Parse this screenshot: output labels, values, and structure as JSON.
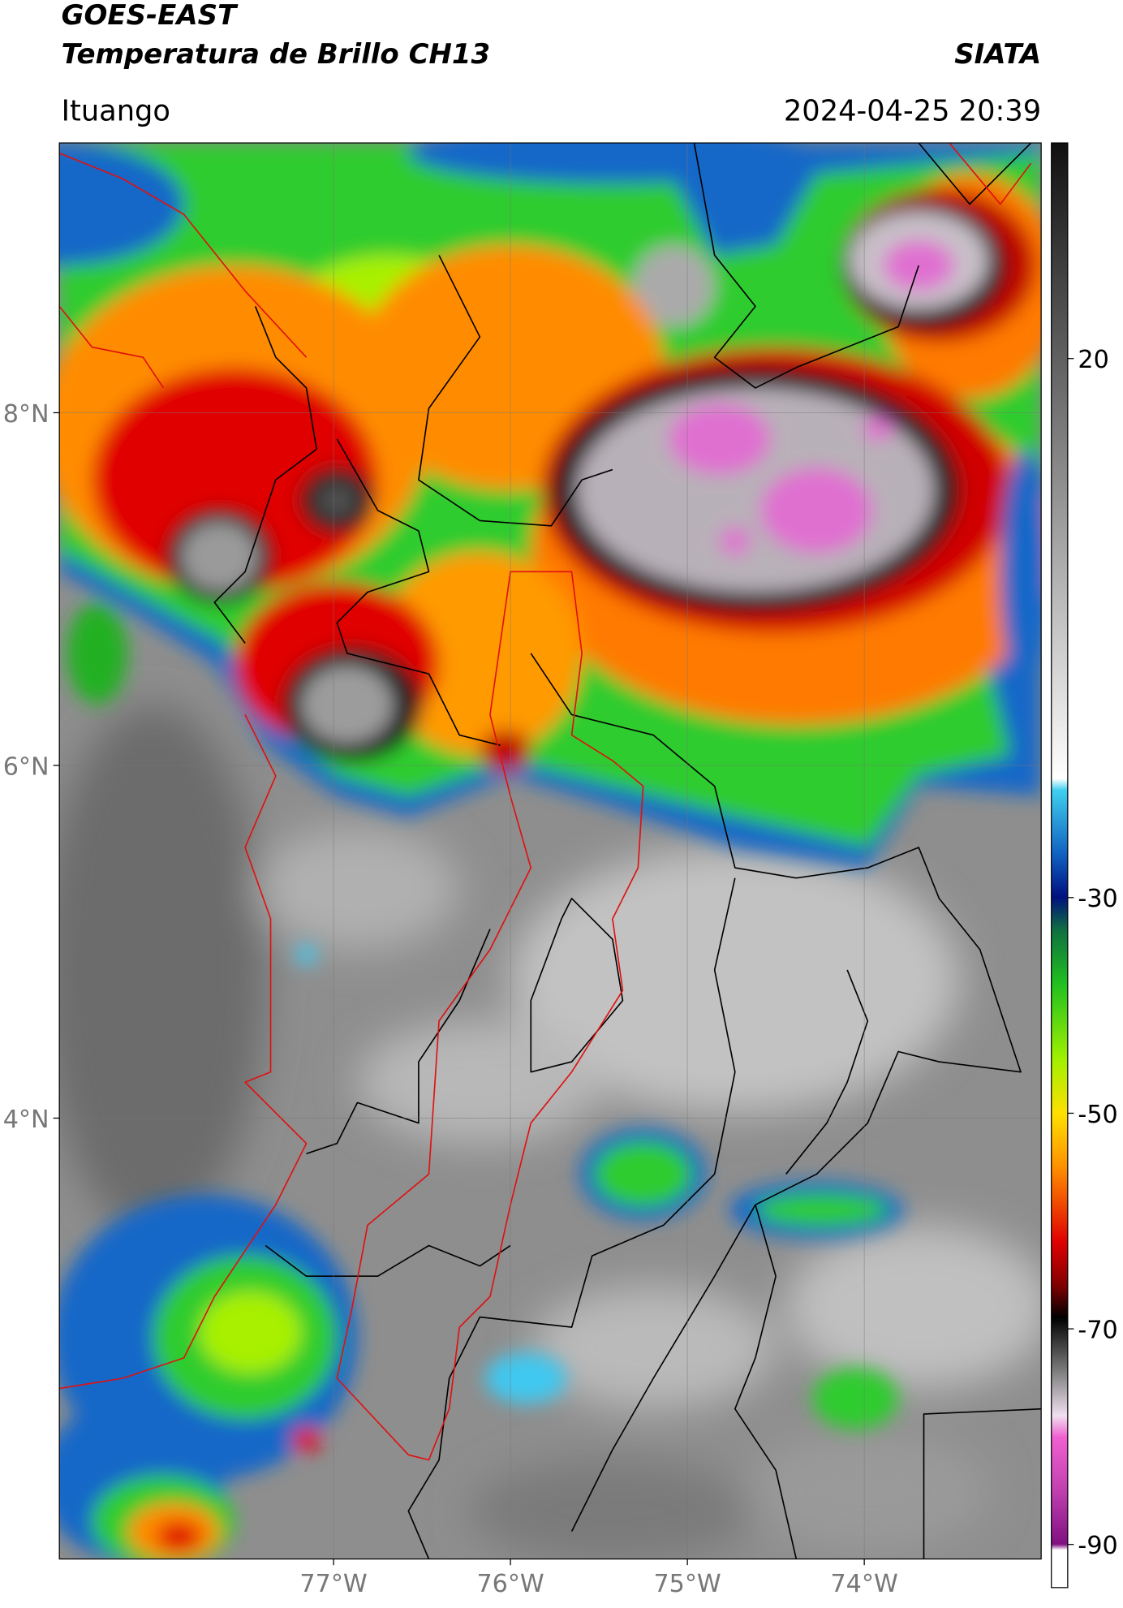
{
  "header": {
    "title_line1": "GOES-EAST",
    "title_line2": "Temperatura de Brillo CH13",
    "source": "SIATA",
    "location": "Ituango",
    "datetime": "2024-04-25 20:39"
  },
  "map": {
    "xlim": [
      -78.55,
      -73
    ],
    "ylim": [
      1.5,
      9.53
    ],
    "grid": true,
    "xticks": [
      {
        "value": -77,
        "label": "77°W"
      },
      {
        "value": -76,
        "label": "76°W"
      },
      {
        "value": -75,
        "label": "75°W"
      },
      {
        "value": -74,
        "label": "74°W"
      }
    ],
    "yticks": [
      {
        "value": 8,
        "label": "8°N"
      },
      {
        "value": 6,
        "label": "6°N"
      },
      {
        "value": 4,
        "label": "4°N"
      }
    ]
  },
  "colorbar": {
    "lim": [
      -94,
      40
    ],
    "ticks": [
      20,
      -30,
      -50,
      -70,
      -90
    ]
  }
}
